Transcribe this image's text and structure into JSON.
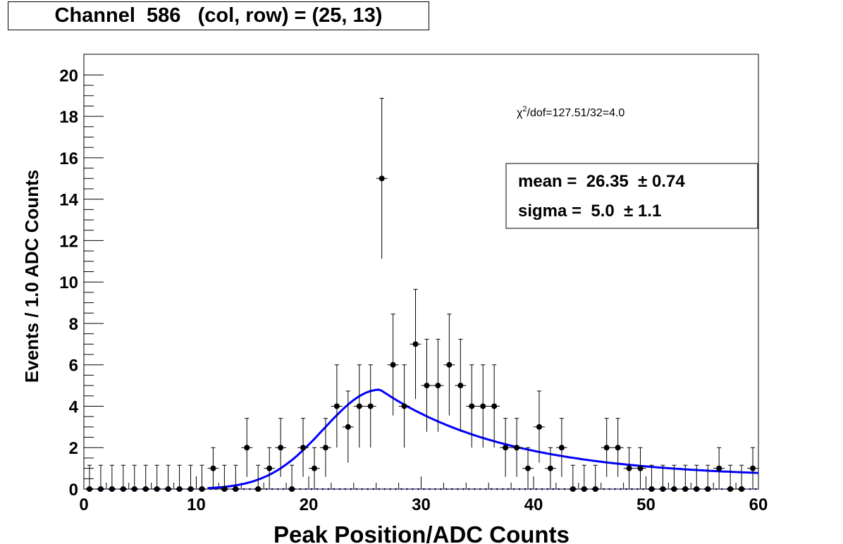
{
  "chart_data": {
    "type": "scatter",
    "title": "Channel  586   (col, row) = (25, 13)",
    "xlabel": "Peak Position/ADC Counts",
    "ylabel": "Events / 1.0 ADC Counts",
    "xlim": [
      0,
      60
    ],
    "ylim": [
      0,
      21
    ],
    "x_ticks": [
      "0",
      "10",
      "20",
      "30",
      "40",
      "50",
      "60"
    ],
    "y_ticks": [
      "0",
      "2",
      "4",
      "6",
      "8",
      "10",
      "12",
      "14",
      "16",
      "18",
      "20"
    ],
    "grid": false,
    "series": [
      {
        "type": "errorbar-points",
        "x": [
          0.5,
          1.5,
          2.5,
          3.5,
          4.5,
          5.5,
          6.5,
          7.5,
          8.5,
          9.5,
          10.5,
          11.5,
          12.5,
          13.5,
          14.5,
          15.5,
          16.5,
          17.5,
          18.5,
          19.5,
          20.5,
          21.5,
          22.5,
          23.5,
          24.5,
          25.5,
          26.5,
          27.5,
          28.5,
          29.5,
          30.5,
          31.5,
          32.5,
          33.5,
          34.5,
          35.5,
          36.5,
          37.5,
          38.5,
          39.5,
          40.5,
          41.5,
          42.5,
          43.5,
          44.5,
          45.5,
          46.5,
          47.5,
          48.5,
          49.5,
          50.5,
          51.5,
          52.5,
          53.5,
          54.5,
          55.5,
          56.5,
          57.5,
          58.5,
          59.5
        ],
        "y": [
          0,
          0,
          0,
          0,
          0,
          0,
          0,
          0,
          0,
          0,
          0,
          1,
          0,
          0,
          2,
          0,
          1,
          2,
          0,
          2,
          1,
          2,
          4,
          3,
          4,
          4,
          15,
          6,
          4,
          7,
          5,
          5,
          6,
          5,
          4,
          4,
          4,
          2,
          2,
          1,
          3,
          1,
          2,
          0,
          0,
          0,
          2,
          2,
          1,
          1,
          0,
          0,
          0,
          0,
          0,
          0,
          1,
          0,
          0,
          1
        ]
      },
      {
        "type": "fit-curve",
        "model": "gaussian-tail",
        "color": "#0000ff"
      }
    ],
    "annotations": {
      "chi2": "/dof=127.51/32=4.0",
      "chi_symbol": "χ",
      "chi_sup": "2",
      "mean_label": "mean =  26.35  ± 0.74",
      "sigma_label": "sigma =  5.0  ± 1.1"
    }
  }
}
